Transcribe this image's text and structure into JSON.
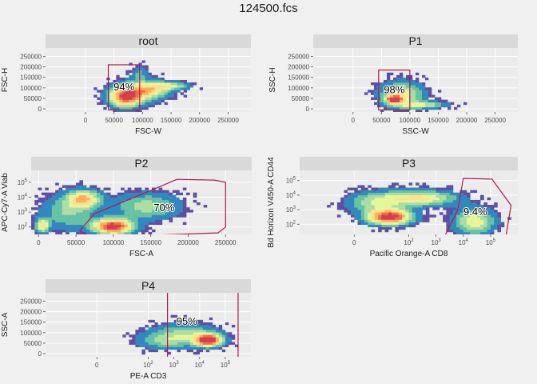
{
  "title": "124500.fcs",
  "colors": {
    "background": "#f0f0f0",
    "panel": "#ebebeb",
    "strip": "#d9d9d9",
    "gate": "#b5174b",
    "density_low": "#5e4fa2",
    "density_high": "#d53e4f"
  },
  "chart_data": [
    {
      "type": "heatmap",
      "title": "root",
      "xlabel": "FSC-W",
      "ylabel": "FSC-H",
      "x_ticks": [
        "0",
        "50000",
        "100000",
        "150000",
        "200000",
        "250000"
      ],
      "y_ticks": [
        "0",
        "50000",
        "100000",
        "150000",
        "200000",
        "250000"
      ],
      "xlim": [
        -70000,
        290000
      ],
      "ylim": [
        -15000,
        290000
      ],
      "gate": {
        "type": "rectangle",
        "x": [
          40000,
          95000
        ],
        "y": [
          -5000,
          210000
        ]
      },
      "gate_label": "94%",
      "density": [
        {
          "x": 70000,
          "y": 60000,
          "sx": 20000,
          "sy": 35000,
          "w": 0.9
        },
        {
          "x": 110000,
          "y": 90000,
          "sx": 25000,
          "sy": 30000,
          "w": 0.6
        },
        {
          "x": 150000,
          "y": 110000,
          "sx": 22000,
          "sy": 12000,
          "w": 0.4
        },
        {
          "x": 95000,
          "y": 170000,
          "sx": 10000,
          "sy": 25000,
          "w": 0.2
        }
      ]
    },
    {
      "type": "heatmap",
      "title": "P1",
      "xlabel": "SSC-W",
      "ylabel": "SSC-H",
      "x_ticks": [
        "0",
        "50000",
        "100000",
        "150000",
        "200000",
        "250000"
      ],
      "y_ticks": [
        "0",
        "50000",
        "100000",
        "150000",
        "200000",
        "250000"
      ],
      "xlim": [
        -70000,
        290000
      ],
      "ylim": [
        -15000,
        290000
      ],
      "gate": {
        "type": "rectangle",
        "x": [
          45000,
          100000
        ],
        "y": [
          -5000,
          185000
        ]
      },
      "gate_label": "98%",
      "density": [
        {
          "x": 72000,
          "y": 45000,
          "sx": 9000,
          "sy": 12000,
          "w": 1.0
        },
        {
          "x": 85000,
          "y": 70000,
          "sx": 25000,
          "sy": 40000,
          "w": 0.5
        },
        {
          "x": 120000,
          "y": 20000,
          "sx": 30000,
          "sy": 12000,
          "w": 0.4
        }
      ]
    },
    {
      "type": "heatmap",
      "title": "P2",
      "xlabel": "FSC-A",
      "ylabel": "APC-Cy7-A Viab",
      "x_ticks": [
        "0",
        "50000",
        "100000",
        "150000",
        "200000",
        "250000"
      ],
      "y_ticks": [
        "10^2",
        "10^3",
        "10^4",
        "10^5"
      ],
      "xlim": [
        -10000,
        285000
      ],
      "ylim": [
        1.5,
        5.8
      ],
      "gate": {
        "type": "polygon",
        "points": [
          [
            55000,
            1.75
          ],
          [
            75000,
            2.9
          ],
          [
            150000,
            4.45
          ],
          [
            185000,
            5.2
          ],
          [
            235000,
            5.15
          ],
          [
            250000,
            5.0
          ],
          [
            250000,
            2.0
          ],
          [
            240000,
            1.6
          ],
          [
            70000,
            1.3
          ]
        ]
      },
      "gate_label": "70%",
      "density": [
        {
          "x": 100000,
          "y": 2.05,
          "sx": 18000,
          "sy": 0.35,
          "w": 1.0
        },
        {
          "x": 60000,
          "y": 3.9,
          "sx": 15000,
          "sy": 0.4,
          "w": 0.6
        },
        {
          "x": 5000,
          "y": 2.1,
          "sx": 6000,
          "sy": 0.3,
          "w": 0.55
        },
        {
          "x": 145000,
          "y": 3.4,
          "sx": 30000,
          "sy": 0.6,
          "w": 0.35
        },
        {
          "x": 40000,
          "y": 3.0,
          "sx": 25000,
          "sy": 0.8,
          "w": 0.3
        }
      ]
    },
    {
      "type": "heatmap",
      "title": "P3",
      "xlabel": "Pacific Orange-A CD8",
      "ylabel": "Bd Horizon V450-A CD44",
      "x_ticks": [
        "0",
        "10^2",
        "10^3",
        "10^4",
        "10^5"
      ],
      "y_ticks": [
        "10^2",
        "10^3",
        "10^4",
        "10^5"
      ],
      "xlim": [
        -2.0,
        6.0
      ],
      "ylim": [
        1.3,
        5.7
      ],
      "gate": {
        "type": "polygon",
        "points": [
          [
            3.35,
            1.3
          ],
          [
            3.8,
            3.0
          ],
          [
            4.0,
            5.15
          ],
          [
            5.05,
            5.1
          ],
          [
            5.75,
            3.3
          ],
          [
            5.55,
            1.0
          ],
          [
            3.6,
            1.0
          ]
        ]
      },
      "gate_label": "9.4%",
      "density": [
        {
          "x": 1.3,
          "y": 2.5,
          "sx": 0.55,
          "sy": 0.35,
          "w": 1.0
        },
        {
          "x": 2.4,
          "y": 3.8,
          "sx": 0.9,
          "sy": 0.35,
          "w": 0.55
        },
        {
          "x": 4.4,
          "y": 2.2,
          "sx": 0.5,
          "sy": 0.6,
          "w": 0.5
        },
        {
          "x": 0.8,
          "y": 3.5,
          "sx": 0.7,
          "sy": 0.5,
          "w": 0.35
        }
      ]
    },
    {
      "type": "heatmap",
      "title": "P4",
      "xlabel": "PE-A CD3",
      "ylabel": "SSC-A",
      "x_ticks": [
        "0",
        "10^2",
        "10^3",
        "10^4",
        "10^5"
      ],
      "y_ticks": [
        "0",
        "50000",
        "100000",
        "150000",
        "200000",
        "250000"
      ],
      "xlim": [
        -2.0,
        6.0
      ],
      "ylim": [
        -15000,
        290000
      ],
      "gate": {
        "type": "vlines",
        "x": [
          2.75,
          5.5
        ]
      },
      "gate_label": "95%",
      "density": [
        {
          "x": 4.35,
          "y": 65000,
          "sx": 0.35,
          "sy": 20000,
          "w": 1.0
        },
        {
          "x": 3.4,
          "y": 90000,
          "sx": 0.9,
          "sy": 35000,
          "w": 0.35
        },
        {
          "x": 2.5,
          "y": 60000,
          "sx": 0.7,
          "sy": 25000,
          "w": 0.2
        }
      ]
    }
  ]
}
